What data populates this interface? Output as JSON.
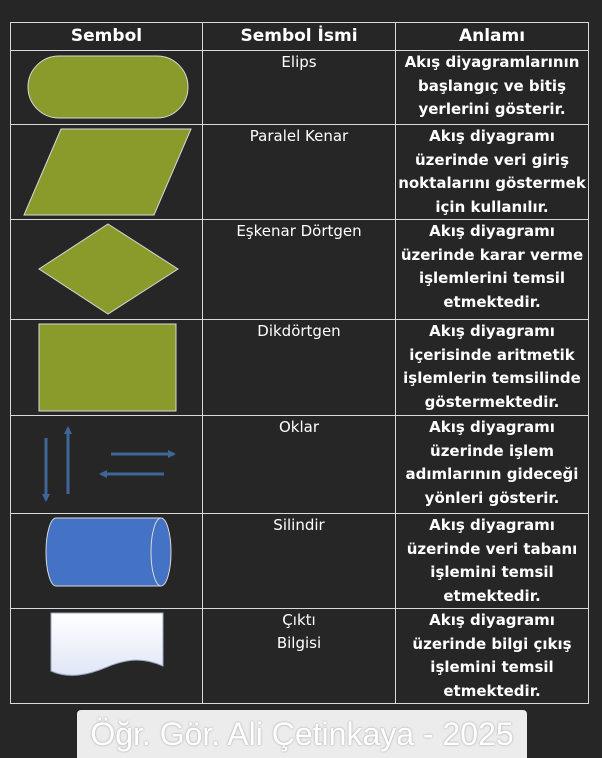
{
  "headers": {
    "symbol": "Sembol",
    "name": "Sembol İsmi",
    "meaning": "Anlamı"
  },
  "rows": [
    {
      "symbol_icon": "ellipse-terminal-icon",
      "name": [
        "Elips"
      ],
      "meaning": "Akış diyagramlarının başlangıç ve bitiş yerlerini gösterir."
    },
    {
      "symbol_icon": "parallelogram-icon",
      "name": [
        "Paralel Kenar"
      ],
      "meaning": "Akış diyagramı üzerinde veri giriş noktalarını göstermek için kullanılır."
    },
    {
      "symbol_icon": "diamond-icon",
      "name": [
        "Eşkenar Dörtgen"
      ],
      "meaning": "Akış diyagramı üzerinde karar verme işlemlerini temsil etmektedir."
    },
    {
      "symbol_icon": "rectangle-icon",
      "name": [
        "Dikdörtgen"
      ],
      "meaning": "Akış diyagramı içerisinde aritmetik işlemlerin temsilinde göstermektedir."
    },
    {
      "symbol_icon": "arrows-icon",
      "name": [
        "Oklar"
      ],
      "meaning": "Akış diyagramı üzerinde işlem adımlarının gideceği yönleri gösterir."
    },
    {
      "symbol_icon": "cylinder-icon",
      "name": [
        "Silindir"
      ],
      "meaning": "Akış diyagramı üzerinde veri tabanı işlemini temsil etmektedir."
    },
    {
      "symbol_icon": "document-output-icon",
      "name": [
        "Çıktı",
        "Bilgisi"
      ],
      "meaning": "Akış diyagramı üzerinde bilgi çıkış işlemini temsil etmektedir."
    }
  ],
  "colors": {
    "shape_fill": "#8a9a2b",
    "cylinder_fill": "#4472c4",
    "arrow": "#3e6698"
  },
  "watermark": "Öğr. Gör. Ali Çetinkaya - 2025"
}
